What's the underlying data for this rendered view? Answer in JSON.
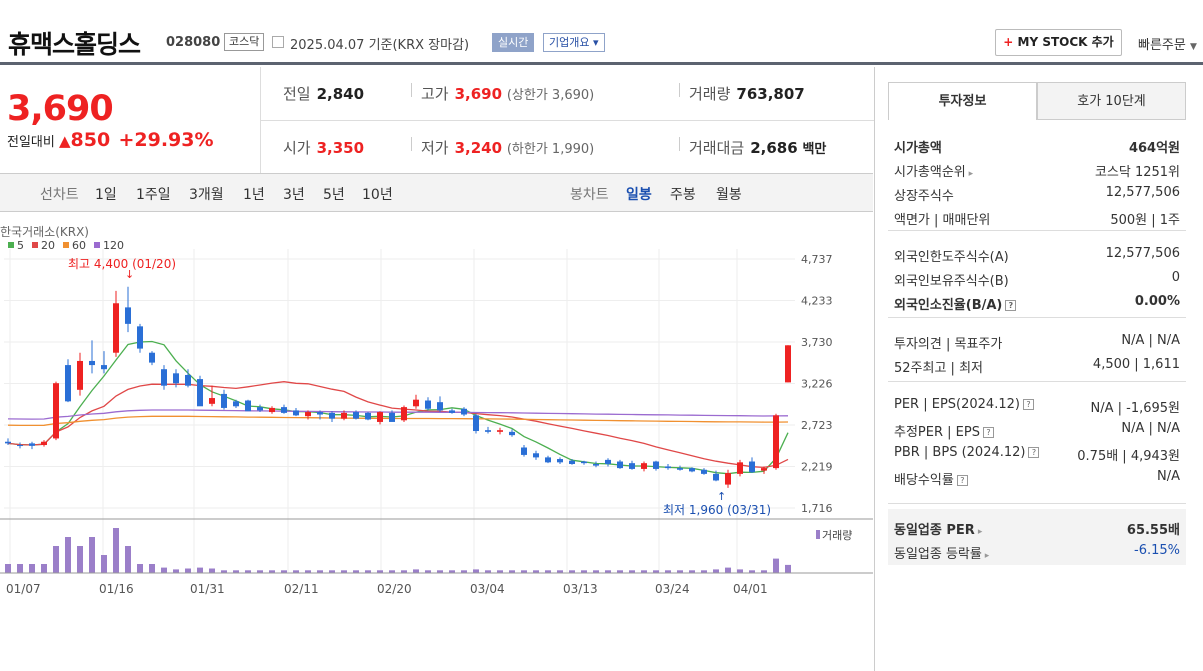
{
  "header": {
    "company": "휴맥스홀딩스",
    "code": "028080",
    "market_badge": "코스닥",
    "date_text": "2025.04.07 기준(KRX 장마감)",
    "realtime_btn": "실시간",
    "overview_btn": "기업개요",
    "mystock_btn": "MY STOCK 추가",
    "quick_order": "빠른주문"
  },
  "quote": {
    "price": "3,690",
    "change_label": "전일대비",
    "change": "850",
    "change_pct": "+29.93%",
    "prev_label": "전일",
    "prev": "2,840",
    "high_label": "고가",
    "high": "3,690",
    "upper_limit": "(상한가 3,690)",
    "volume_label": "거래량",
    "volume": "763,807",
    "open_label": "시가",
    "open": "3,350",
    "low_label": "저가",
    "low": "3,240",
    "lower_limit": "(하한가 1,990)",
    "amount_label": "거래대금",
    "amount": "2,686",
    "amount_unit": "백만"
  },
  "period_tabs": {
    "line_label": "선차트",
    "items": [
      "1일",
      "1주일",
      "3개월",
      "1년",
      "3년",
      "5년",
      "10년"
    ],
    "candle_label": "봉차트",
    "candle_items": [
      "일봉",
      "주봉",
      "월봉"
    ],
    "selected_candle": "일봉"
  },
  "chart_data": {
    "type": "candlestick",
    "source": "한국거래소(KRX)",
    "ma_legend": [
      {
        "name": "5",
        "color": "#4caf50"
      },
      {
        "name": "20",
        "color": "#e04848"
      },
      {
        "name": "60",
        "color": "#f09030"
      },
      {
        "name": "120",
        "color": "#9b6bd0"
      }
    ],
    "high_annot": "최고 4,400 (01/20)",
    "low_annot": "최저 1,960 (03/31)",
    "volume_label": "거래량",
    "y_ticks": [
      "4,737",
      "4,233",
      "3,730",
      "3,226",
      "2,723",
      "2,219",
      "1,716"
    ],
    "x_ticks": [
      "01/07",
      "01/16",
      "01/31",
      "02/11",
      "02/20",
      "03/04",
      "03/13",
      "03/24",
      "04/01"
    ],
    "ylim": [
      1716,
      4737
    ]
  },
  "sidebar": {
    "tab_info": "투자정보",
    "tab_hoga": "호가 10단계",
    "rows": [
      [
        "시가총액",
        "464억원"
      ],
      [
        "시가총액순위",
        "코스닥 1251위"
      ],
      [
        "상장주식수",
        "12,577,506"
      ],
      [
        "액면가 | 매매단위",
        "500원 | 1주"
      ],
      [
        "외국인한도주식수(A)",
        "12,577,506"
      ],
      [
        "외국인보유주식수(B)",
        "0"
      ],
      [
        "외국인소진율(B/A)",
        "0.00%"
      ],
      [
        "투자의견 | 목표주가",
        "N/A | N/A"
      ],
      [
        "52주최고 | 최저",
        "4,500 | 1,611"
      ],
      [
        "PER | EPS(2024.12)",
        "N/A | -1,695원"
      ],
      [
        "추정PER | EPS",
        "N/A | N/A"
      ],
      [
        "PBR | BPS (2024.12)",
        "0.75배 | 4,943원"
      ],
      [
        "배당수익률",
        "N/A"
      ],
      [
        "동일업종 PER",
        "65.55배"
      ],
      [
        "동일업종 등락률",
        "-6.15%"
      ]
    ]
  }
}
